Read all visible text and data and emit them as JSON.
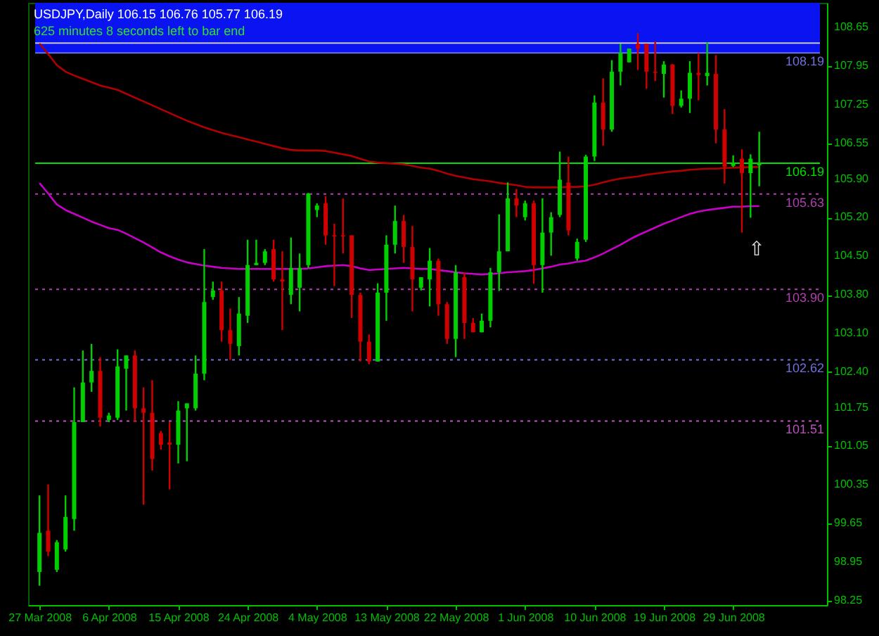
{
  "chart_data": {
    "type": "candlestick",
    "title": "USDJPY,Daily 106.15 106.76 105.77 106.19",
    "subtitle": "625 minutes 8 seconds left to bar end",
    "categories": [
      "27 Mar 2008",
      null,
      null,
      null,
      null,
      null,
      null,
      null,
      "6 Apr 2008",
      null,
      null,
      null,
      null,
      null,
      null,
      null,
      "15 Apr 2008",
      null,
      null,
      null,
      null,
      null,
      null,
      null,
      "24 Apr 2008",
      null,
      null,
      null,
      null,
      null,
      null,
      null,
      "4 May 2008",
      null,
      null,
      null,
      null,
      null,
      null,
      null,
      "13 May 2008",
      null,
      null,
      null,
      null,
      null,
      null,
      null,
      "22 May 2008",
      null,
      null,
      null,
      null,
      null,
      null,
      null,
      "1 Jun 2008",
      null,
      null,
      null,
      null,
      null,
      null,
      null,
      "10 Jun 2008",
      null,
      null,
      null,
      null,
      null,
      null,
      null,
      "19 Jun 2008",
      null,
      null,
      null,
      null,
      null,
      null,
      null,
      "29 Jun 2008",
      null,
      null,
      null
    ],
    "ohlc": [
      [
        98.77,
        100.16,
        98.52,
        99.48
      ],
      [
        99.52,
        100.36,
        99.06,
        99.14
      ],
      [
        98.81,
        99.35,
        98.77,
        99.31
      ],
      [
        99.18,
        100.16,
        99.14,
        99.77
      ],
      [
        99.73,
        102.12,
        99.52,
        101.49
      ],
      [
        101.49,
        102.79,
        101.49,
        102.21
      ],
      [
        102.21,
        102.91,
        102.04,
        102.42
      ],
      [
        102.42,
        102.67,
        101.41,
        101.57
      ],
      [
        101.53,
        101.66,
        101.49,
        101.61
      ],
      [
        101.57,
        102.81,
        101.53,
        102.5
      ],
      [
        102.46,
        102.7,
        101.7,
        102.7
      ],
      [
        102.7,
        102.79,
        101.49,
        101.74
      ],
      [
        101.74,
        102.12,
        99.99,
        101.66
      ],
      [
        101.66,
        102.25,
        100.61,
        100.82
      ],
      [
        101.29,
        101.33,
        100.99,
        101.08
      ],
      [
        101.12,
        101.49,
        100.27,
        101.08
      ],
      [
        101.08,
        101.87,
        100.74,
        101.7
      ],
      [
        101.74,
        101.83,
        100.78,
        101.83
      ],
      [
        101.74,
        102.7,
        101.7,
        102.37
      ],
      [
        102.37,
        104.63,
        102.25,
        103.67
      ],
      [
        103.76,
        104.04,
        103.71,
        103.88
      ],
      [
        103.88,
        104.04,
        102.95,
        103.16
      ],
      [
        103.16,
        103.55,
        102.62,
        102.91
      ],
      [
        102.87,
        103.76,
        102.7,
        103.46
      ],
      [
        103.42,
        104.8,
        103.29,
        104.34
      ],
      [
        104.34,
        104.8,
        104.34,
        104.38
      ],
      [
        104.38,
        104.63,
        104.34,
        104.59
      ],
      [
        104.63,
        104.8,
        104.04,
        104.08
      ],
      [
        104.08,
        104.59,
        103.16,
        104.04
      ],
      [
        103.8,
        104.84,
        103.63,
        104.29
      ],
      [
        103.93,
        104.55,
        103.5,
        104.29
      ],
      [
        104.34,
        105.65,
        104.29,
        105.64
      ],
      [
        105.34,
        105.46,
        105.21,
        105.42
      ],
      [
        105.46,
        105.59,
        104.71,
        104.88
      ],
      [
        104.88,
        105.09,
        103.96,
        104.86
      ],
      [
        104.88,
        105.55,
        104.55,
        104.86
      ],
      [
        104.88,
        104.88,
        103.38,
        103.8
      ],
      [
        103.8,
        103.84,
        102.59,
        102.95
      ],
      [
        102.95,
        103.08,
        102.54,
        102.59
      ],
      [
        102.59,
        104.01,
        102.59,
        103.84
      ],
      [
        103.84,
        104.88,
        103.33,
        104.71
      ],
      [
        104.71,
        105.42,
        104.55,
        105.14
      ],
      [
        105.14,
        105.25,
        104.38,
        104.67
      ],
      [
        104.67,
        105.05,
        103.5,
        104.08
      ],
      [
        103.93,
        104.12,
        103.88,
        104.12
      ],
      [
        104.08,
        104.65,
        103.59,
        104.42
      ],
      [
        104.42,
        104.46,
        103.42,
        103.63
      ],
      [
        103.63,
        103.67,
        102.91,
        103.0
      ],
      [
        103.0,
        104.34,
        102.67,
        104.21
      ],
      [
        104.12,
        104.21,
        103.0,
        103.29
      ],
      [
        103.29,
        103.38,
        103.12,
        103.12
      ],
      [
        103.12,
        103.46,
        103.12,
        103.33
      ],
      [
        103.33,
        104.29,
        103.21,
        104.21
      ],
      [
        104.21,
        105.26,
        103.87,
        104.59
      ],
      [
        104.59,
        105.84,
        104.59,
        105.55
      ],
      [
        105.55,
        105.72,
        105.21,
        105.42
      ],
      [
        105.21,
        105.51,
        105.15,
        105.46
      ],
      [
        105.46,
        105.51,
        104.0,
        104.34
      ],
      [
        104.34,
        105.55,
        103.84,
        104.93
      ],
      [
        104.93,
        105.3,
        104.51,
        105.21
      ],
      [
        105.25,
        106.4,
        105.21,
        105.89
      ],
      [
        105.84,
        106.31,
        104.88,
        104.97
      ],
      [
        104.46,
        104.82,
        104.42,
        104.76
      ],
      [
        104.8,
        106.34,
        104.76,
        106.31
      ],
      [
        106.31,
        107.42,
        106.23,
        107.29
      ],
      [
        107.29,
        107.73,
        106.51,
        106.8
      ],
      [
        106.8,
        108.06,
        106.76,
        107.85
      ],
      [
        107.85,
        108.36,
        107.6,
        108.19
      ],
      [
        108.02,
        108.27,
        108.02,
        108.27
      ],
      [
        108.36,
        108.55,
        107.88,
        108.27
      ],
      [
        108.36,
        108.36,
        107.54,
        107.85
      ],
      [
        107.85,
        108.4,
        107.68,
        107.83
      ],
      [
        107.81,
        108.04,
        107.38,
        107.98
      ],
      [
        107.98,
        107.99,
        107.08,
        107.23
      ],
      [
        107.23,
        107.51,
        107.2,
        107.36
      ],
      [
        107.36,
        108.04,
        107.1,
        107.83
      ],
      [
        107.83,
        108.19,
        107.33,
        107.79
      ],
      [
        107.77,
        108.38,
        107.6,
        107.83
      ],
      [
        107.81,
        108.15,
        106.55,
        106.8
      ],
      [
        106.8,
        107.17,
        105.82,
        106.12
      ],
      [
        106.14,
        106.33,
        106.12,
        106.18
      ],
      [
        106.27,
        106.44,
        104.93,
        106.01
      ],
      [
        106.01,
        106.35,
        105.2,
        106.27
      ],
      [
        106.15,
        106.76,
        105.77,
        106.19
      ]
    ],
    "colors": [
      "#00d000",
      "#d00000",
      "#00d000",
      "#00d000",
      "#00d000",
      "#00d000",
      "#00d000",
      "#d00000",
      "#00d000",
      "#00d000",
      "#00d000",
      "#d00000",
      "#d00000",
      "#d00000",
      "#d00000",
      "#d00000",
      "#00d000",
      "#00d000",
      "#00d000",
      "#00d000",
      "#00d000",
      "#d00000",
      "#d00000",
      "#00d000",
      "#00d000",
      "#00d000",
      "#00d000",
      "#d00000",
      "#d00000",
      "#00d000",
      "#00d000",
      "#00d000",
      "#00d000",
      "#d00000",
      "#d00000",
      "#d00000",
      "#d00000",
      "#d00000",
      "#d00000",
      "#00d000",
      "#00d000",
      "#00d000",
      "#d00000",
      "#d00000",
      "#00d000",
      "#00d000",
      "#d00000",
      "#d00000",
      "#00d000",
      "#d00000",
      "#d00000",
      "#00d000",
      "#00d000",
      "#00d000",
      "#00d000",
      "#d00000",
      "#00d000",
      "#d00000",
      "#00d000",
      "#00d000",
      "#00d000",
      "#d00000",
      "#00d000",
      "#00d000",
      "#00d000",
      "#d00000",
      "#00d000",
      "#00d000",
      "#00d000",
      "#d00000",
      "#d00000",
      "#d00000",
      "#00d000",
      "#d00000",
      "#00d000",
      "#00d000",
      "#d00000",
      "#00d000",
      "#d00000",
      "#d00000",
      "#00d000",
      "#d00000",
      "#00d000",
      "#00d000"
    ],
    "series": [
      {
        "type": "line",
        "color": "#b00000",
        "values": [
          108.36,
          108.17,
          107.97,
          107.85,
          107.78,
          107.72,
          107.66,
          107.6,
          107.56,
          107.52,
          107.45,
          107.38,
          107.31,
          107.24,
          107.17,
          107.1,
          107.03,
          106.96,
          106.9,
          106.84,
          106.79,
          106.74,
          106.7,
          106.66,
          106.62,
          106.58,
          106.54,
          106.5,
          106.46,
          106.43,
          106.42,
          106.42,
          106.42,
          106.41,
          106.38,
          106.35,
          106.32,
          106.27,
          106.22,
          106.2,
          106.19,
          106.18,
          106.17,
          106.14,
          106.11,
          106.09,
          106.05,
          106.0,
          105.96,
          105.93,
          105.9,
          105.88,
          105.86,
          105.83,
          105.81,
          105.79,
          105.76,
          105.75,
          105.75,
          105.75,
          105.75,
          105.76,
          105.76,
          105.77,
          105.8,
          105.84,
          105.88,
          105.91,
          105.93,
          105.95,
          105.98,
          106.0,
          106.02,
          106.04,
          106.05,
          106.07,
          106.08,
          106.09,
          106.09,
          106.1,
          106.11,
          106.11,
          106.12,
          106.12
        ]
      },
      {
        "type": "line",
        "color": "#c800c8",
        "values": [
          105.83,
          105.64,
          105.44,
          105.34,
          105.27,
          105.2,
          105.13,
          105.07,
          105.01,
          104.98,
          104.91,
          104.83,
          104.75,
          104.66,
          104.57,
          104.5,
          104.44,
          104.39,
          104.36,
          104.33,
          104.31,
          104.29,
          104.28,
          104.27,
          104.27,
          104.27,
          104.27,
          104.27,
          104.27,
          104.27,
          104.27,
          104.28,
          104.3,
          104.32,
          104.33,
          104.34,
          104.32,
          104.28,
          104.25,
          104.26,
          104.27,
          104.28,
          104.29,
          104.28,
          104.27,
          104.27,
          104.25,
          104.23,
          104.21,
          104.19,
          104.18,
          104.17,
          104.18,
          104.19,
          104.21,
          104.22,
          104.23,
          104.25,
          104.28,
          104.31,
          104.35,
          104.37,
          104.4,
          104.42,
          104.48,
          104.55,
          104.63,
          104.71,
          104.8,
          104.88,
          104.95,
          105.02,
          105.09,
          105.15,
          105.21,
          105.27,
          105.31,
          105.34,
          105.36,
          105.38,
          105.4,
          105.4,
          105.41,
          105.41
        ]
      }
    ],
    "ylim": [
      98.17,
      109.1
    ],
    "yticks": [
      98.25,
      98.95,
      99.65,
      100.35,
      101.05,
      101.75,
      {
        "value": 102.4,
        "label": "102.40"
      },
      {
        "value": 103.1,
        "label": "103.10"
      },
      {
        "value": 103.8,
        "label": "103.80"
      },
      {
        "value": 104.5,
        "label": "104.50"
      },
      {
        "value": 105.2,
        "label": "105.20"
      },
      {
        "value": 105.9,
        "label": "105.90"
      },
      106.55,
      107.25,
      107.95,
      108.65
    ],
    "ref_lines": [
      {
        "axis": "y",
        "value": 108.37,
        "color": "#c8c8c8",
        "line_style": "solid"
      },
      {
        "axis": "y",
        "value": 108.19,
        "label": "108.19",
        "color": "#7070e0",
        "line_style": "solid"
      },
      {
        "axis": "y",
        "value": 106.19,
        "label": "106.19",
        "color": "#00e000",
        "line_style": "solid"
      },
      {
        "axis": "y",
        "value": 105.63,
        "label": "105.63",
        "color": "#b040b0",
        "line_style": "dotted"
      },
      {
        "axis": "y",
        "value": 103.9,
        "label": "103.90",
        "color": "#b040b0",
        "line_style": "dotted"
      },
      {
        "axis": "y",
        "value": 102.62,
        "label": "102.62",
        "color": "#7070e0",
        "line_style": "dotted"
      },
      {
        "axis": "y",
        "value": 101.51,
        "label": "101.51",
        "color": "#c050c0",
        "line_style": "dotted"
      }
    ],
    "bands": [
      {
        "axis": "y",
        "from": 108.19,
        "to": 109.1,
        "color": "#0a14f0"
      }
    ],
    "annotations": [
      "⇧"
    ],
    "grid": false
  }
}
